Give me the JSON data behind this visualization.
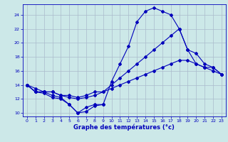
{
  "xlabel": "Graphe des températures (°c)",
  "background_color": "#cce8e8",
  "grid_color": "#aabbcc",
  "line_color": "#0000bb",
  "xlim": [
    -0.5,
    23.5
  ],
  "ylim": [
    9.5,
    25.5
  ],
  "yticks": [
    10,
    12,
    14,
    16,
    18,
    20,
    22,
    24
  ],
  "xticks": [
    0,
    1,
    2,
    3,
    4,
    5,
    6,
    7,
    8,
    9,
    10,
    11,
    12,
    13,
    14,
    15,
    16,
    17,
    18,
    19,
    20,
    21,
    22,
    23
  ],
  "series": [
    {
      "x": [
        0,
        1,
        2,
        3,
        4,
        5,
        6,
        7,
        8,
        9,
        10,
        11,
        12,
        13,
        14,
        15,
        16,
        17,
        18,
        19,
        20,
        21,
        22,
        23
      ],
      "y": [
        14,
        13,
        13,
        12.5,
        12.2,
        11.2,
        10.0,
        10.2,
        11.0,
        11.2,
        14.5,
        17.0,
        19.5,
        23.0,
        24.5,
        25.0,
        24.5,
        24.0,
        22.0,
        19.0,
        17.0,
        16.5,
        16.5,
        15.5
      ]
    },
    {
      "x": [
        0,
        1,
        2,
        3,
        4,
        5,
        6,
        7,
        8,
        9,
        10,
        11,
        12,
        13,
        14,
        15,
        16,
        17,
        18,
        19,
        20,
        21,
        22,
        23
      ],
      "y": [
        14,
        13,
        13,
        13,
        12.5,
        12.2,
        12.0,
        12.2,
        12.5,
        13.0,
        14.0,
        15.0,
        16.0,
        17.0,
        18.0,
        19.0,
        20.0,
        21.0,
        22.0,
        19.0,
        18.5,
        17.0,
        16.5,
        15.5
      ]
    },
    {
      "x": [
        0,
        1,
        2,
        3,
        4,
        5,
        6,
        7,
        8,
        9,
        10,
        11,
        12,
        13,
        14,
        15,
        16,
        17,
        18,
        19,
        20,
        21,
        22,
        23
      ],
      "y": [
        14,
        13.5,
        13.0,
        13.0,
        12.5,
        12.5,
        12.2,
        12.5,
        13.0,
        13.0,
        13.5,
        14.0,
        14.5,
        15.0,
        15.5,
        16.0,
        16.5,
        17.0,
        17.5,
        17.5,
        17.0,
        16.5,
        16.0,
        15.5
      ]
    },
    {
      "x": [
        0,
        1,
        2,
        3,
        4,
        5,
        6,
        7,
        8,
        9
      ],
      "y": [
        14,
        13,
        12.8,
        12.2,
        12.0,
        11.2,
        10.0,
        10.8,
        11.2,
        11.2
      ]
    }
  ]
}
